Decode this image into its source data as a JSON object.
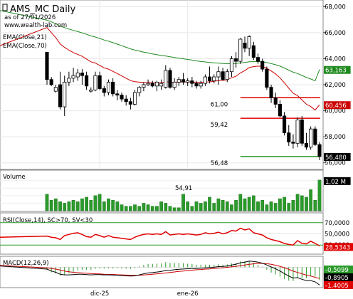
{
  "chart_data": {
    "type": "candlestick",
    "title": "AMS_MC Daily",
    "subtitle": "as of 27/01/2026",
    "source": "www.wealth-lab.com",
    "overlays": [
      {
        "name": "EMA(Close,21)",
        "color": "#cc0000",
        "last": "60,456"
      },
      {
        "name": "EMA(Close,70)",
        "color": "#1f8a1f",
        "last": "63,163"
      }
    ],
    "last_price": "56,480",
    "price_ylim": [
      55.6,
      68.4
    ],
    "price_ticks": [
      "68,000",
      "66,000",
      "64,000",
      "62,000",
      "60,000",
      "58,000",
      "56,000"
    ],
    "levels": [
      {
        "label": "61,00",
        "value": 61.0,
        "color": "#e00000"
      },
      {
        "label": "59,42",
        "value": 59.42,
        "color": "#e00000"
      },
      {
        "label": "56,48",
        "value": 56.48,
        "color": "#2a9a2a"
      }
    ],
    "x_labels": [
      {
        "label": "dic-25",
        "index": 12
      },
      {
        "label": "ene-26",
        "index": 32
      }
    ],
    "ohlc": [
      [
        64.5,
        64.5,
        62.0,
        62.4
      ],
      [
        62.4,
        62.6,
        61.9,
        62.0
      ],
      [
        61.5,
        62.0,
        61.4,
        61.8
      ],
      [
        62.0,
        63.0,
        60.1,
        60.3
      ],
      [
        60.3,
        62.7,
        59.6,
        62.2
      ],
      [
        62.2,
        63.0,
        61.9,
        62.5
      ],
      [
        62.5,
        63.3,
        62.2,
        62.7
      ],
      [
        62.6,
        63.2,
        62.3,
        62.9
      ],
      [
        62.9,
        63.2,
        62.0,
        62.7
      ],
      [
        62.7,
        63.0,
        61.6,
        61.9
      ],
      [
        61.5,
        61.8,
        61.4,
        61.6
      ],
      [
        61.6,
        63.0,
        61.5,
        62.7
      ],
      [
        62.7,
        63.0,
        61.6,
        61.7
      ],
      [
        61.7,
        61.9,
        61.1,
        61.4
      ],
      [
        61.4,
        62.4,
        61.2,
        62.2
      ],
      [
        62.2,
        62.5,
        61.1,
        61.3
      ],
      [
        61.3,
        61.6,
        60.8,
        61.2
      ],
      [
        61.2,
        61.4,
        60.7,
        60.9
      ],
      [
        60.9,
        61.2,
        60.4,
        60.7
      ],
      [
        60.7,
        61.0,
        60.1,
        60.5
      ],
      [
        60.5,
        61.6,
        60.4,
        61.4
      ],
      [
        61.4,
        61.9,
        61.1,
        61.8
      ],
      [
        61.8,
        62.2,
        61.5,
        62.0
      ],
      [
        62.0,
        62.4,
        61.9,
        62.1
      ],
      [
        62.1,
        62.3,
        61.8,
        61.9
      ],
      [
        61.9,
        62.3,
        61.5,
        62.2
      ],
      [
        61.9,
        62.4,
        61.6,
        62.1
      ],
      [
        61.8,
        63.5,
        61.7,
        63.1
      ],
      [
        63.1,
        63.3,
        61.7,
        61.8
      ],
      [
        61.8,
        62.5,
        61.6,
        62.2
      ],
      [
        62.2,
        62.6,
        61.9,
        62.4
      ],
      [
        62.4,
        62.9,
        62.0,
        62.2
      ],
      [
        62.2,
        62.5,
        61.9,
        62.3
      ],
      [
        62.3,
        62.6,
        61.8,
        62.1
      ],
      [
        62.1,
        62.3,
        61.7,
        61.9
      ],
      [
        61.9,
        62.3,
        61.7,
        62.1
      ],
      [
        62.1,
        62.8,
        61.9,
        62.6
      ],
      [
        62.6,
        63.4,
        62.1,
        62.3
      ],
      [
        62.3,
        62.8,
        62.1,
        62.6
      ],
      [
        62.6,
        63.4,
        62.0,
        63.0
      ],
      [
        63.0,
        63.3,
        62.3,
        62.4
      ],
      [
        62.4,
        63.2,
        62.2,
        63.0
      ],
      [
        63.0,
        64.2,
        62.6,
        64.0
      ],
      [
        64.0,
        64.5,
        63.3,
        63.8
      ],
      [
        63.8,
        65.6,
        63.6,
        65.5
      ],
      [
        65.2,
        65.7,
        64.5,
        64.8
      ],
      [
        64.8,
        65.8,
        64.2,
        65.7
      ],
      [
        65.0,
        65.3,
        63.9,
        64.1
      ],
      [
        64.1,
        64.4,
        63.6,
        63.8
      ],
      [
        63.8,
        64.0,
        63.0,
        63.2
      ],
      [
        63.2,
        63.4,
        61.6,
        61.8
      ],
      [
        61.8,
        62.0,
        60.6,
        61.0
      ],
      [
        61.0,
        61.4,
        60.2,
        60.5
      ],
      [
        60.5,
        60.8,
        59.5,
        59.6
      ],
      [
        59.6,
        59.9,
        58.1,
        58.3
      ],
      [
        58.3,
        58.9,
        57.3,
        57.6
      ],
      [
        57.6,
        58.2,
        57.1,
        57.5
      ],
      [
        57.5,
        59.5,
        57.2,
        59.3
      ],
      [
        59.3,
        59.6,
        57.3,
        57.5
      ],
      [
        57.5,
        58.3,
        57.0,
        57.2
      ],
      [
        57.2,
        58.8,
        57.0,
        58.6
      ],
      [
        58.6,
        58.8,
        57.3,
        57.4
      ],
      [
        57.4,
        57.6,
        56.2,
        56.48
      ]
    ],
    "volume": {
      "label": "Volume",
      "last": "1,02 M",
      "annotation": "54,91",
      "values": [
        0.55,
        0.35,
        0.4,
        0.3,
        0.25,
        0.3,
        0.35,
        0.3,
        0.4,
        0.45,
        0.35,
        0.5,
        0.55,
        0.3,
        0.4,
        0.35,
        0.3,
        0.2,
        0.15,
        0.15,
        0.2,
        0.15,
        0.25,
        0.2,
        0.15,
        0.15,
        0.3,
        0.25,
        0.15,
        0.1,
        0.1,
        0.55,
        0.3,
        0.15,
        0.3,
        0.25,
        0.3,
        0.45,
        0.25,
        0.4,
        0.35,
        0.3,
        0.2,
        0.35,
        0.55,
        0.4,
        0.45,
        0.5,
        0.3,
        0.35,
        0.2,
        0.3,
        0.25,
        0.4,
        0.45,
        0.25,
        0.35,
        0.55,
        0.5,
        0.45,
        0.7,
        0.35,
        1.02
      ]
    },
    "rsi": {
      "label": "RSI(Close,14), SC>70, SV<30",
      "ticks": [
        "70,0000",
        "50,0000",
        "30,0000"
      ],
      "last": "28,5343",
      "values": [
        46,
        44,
        43,
        40,
        47,
        49,
        51,
        52,
        49,
        45,
        44,
        49,
        47,
        44,
        47,
        44,
        43,
        42,
        41,
        40,
        44,
        47,
        49,
        50,
        49,
        50,
        49,
        54,
        48,
        49,
        50,
        49,
        50,
        49,
        48,
        49,
        52,
        50,
        51,
        53,
        50,
        52,
        56,
        55,
        60,
        57,
        59,
        52,
        50,
        48,
        43,
        40,
        38,
        36,
        33,
        31,
        30,
        38,
        33,
        32,
        37,
        33,
        28.5
      ]
    },
    "macd": {
      "label": "MACD(12,26,9)",
      "last_labels": [
        "-0,5099",
        "-0,8905",
        "-1,4005"
      ],
      "macd": [
        -0.15,
        -0.3,
        -0.4,
        -0.55,
        -0.6,
        -0.6,
        -0.58,
        -0.55,
        -0.55,
        -0.58,
        -0.6,
        -0.58,
        -0.58,
        -0.6,
        -0.6,
        -0.62,
        -0.63,
        -0.65,
        -0.68,
        -0.7,
        -0.68,
        -0.6,
        -0.52,
        -0.45,
        -0.42,
        -0.38,
        -0.34,
        -0.25,
        -0.24,
        -0.2,
        -0.16,
        -0.14,
        -0.12,
        -0.1,
        -0.1,
        -0.08,
        -0.05,
        -0.03,
        0.0,
        0.05,
        0.06,
        0.1,
        0.18,
        0.24,
        0.35,
        0.4,
        0.48,
        0.45,
        0.4,
        0.32,
        0.18,
        0.02,
        -0.12,
        -0.3,
        -0.5,
        -0.7,
        -0.85,
        -0.82,
        -0.95,
        -1.05,
        -1.05,
        -1.15,
        -1.4
      ],
      "signal": [
        -0.05,
        -0.1,
        -0.15,
        -0.22,
        -0.3,
        -0.36,
        -0.4,
        -0.43,
        -0.45,
        -0.48,
        -0.5,
        -0.52,
        -0.53,
        -0.55,
        -0.56,
        -0.57,
        -0.59,
        -0.6,
        -0.62,
        -0.63,
        -0.64,
        -0.63,
        -0.61,
        -0.58,
        -0.55,
        -0.52,
        -0.49,
        -0.45,
        -0.41,
        -0.37,
        -0.33,
        -0.3,
        -0.26,
        -0.23,
        -0.2,
        -0.18,
        -0.15,
        -0.13,
        -0.1,
        -0.07,
        -0.04,
        -0.01,
        0.03,
        0.07,
        0.12,
        0.17,
        0.23,
        0.27,
        0.3,
        0.3,
        0.28,
        0.23,
        0.16,
        0.07,
        -0.04,
        -0.17,
        -0.31,
        -0.41,
        -0.52,
        -0.62,
        -0.7,
        -0.79,
        -0.89
      ]
    }
  }
}
